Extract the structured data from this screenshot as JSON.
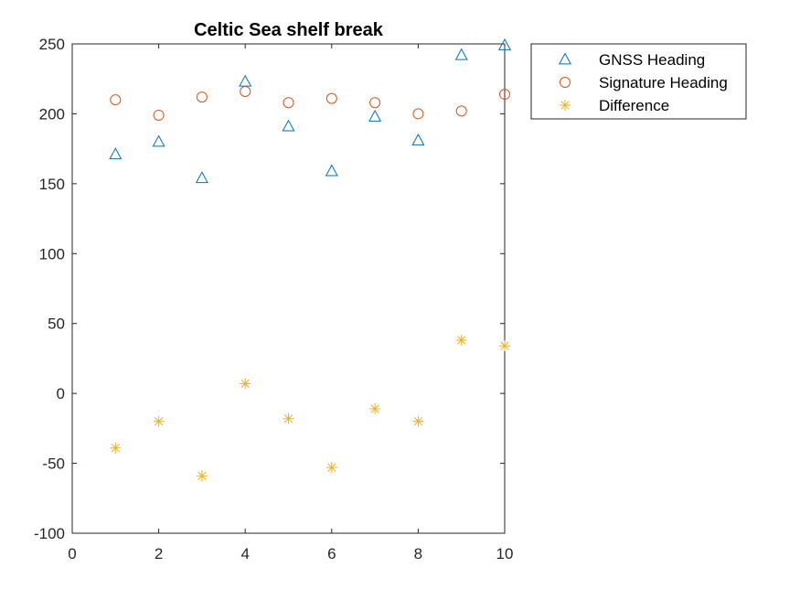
{
  "chart_data": {
    "type": "scatter",
    "title": "Celtic Sea shelf break",
    "xlabel": "",
    "ylabel": "",
    "xlim": [
      0,
      10
    ],
    "ylim": [
      -100,
      250
    ],
    "x_ticks": [
      0,
      2,
      4,
      6,
      8,
      10
    ],
    "y_ticks": [
      -100,
      -50,
      0,
      50,
      100,
      150,
      200,
      250
    ],
    "grid": false,
    "legend_position": "outside-right-top",
    "x": [
      1,
      2,
      3,
      4,
      5,
      6,
      7,
      8,
      9,
      10
    ],
    "series": [
      {
        "name": "GNSS Heading",
        "marker": "triangle",
        "color": "#0072BD",
        "values": [
          171,
          180,
          154,
          223,
          191,
          159,
          198,
          181,
          242,
          249
        ]
      },
      {
        "name": "Signature Heading",
        "marker": "circle",
        "color": "#D95319",
        "values": [
          210,
          199,
          212,
          216,
          208,
          211,
          208,
          200,
          202,
          214
        ]
      },
      {
        "name": "Difference",
        "marker": "asterisk",
        "color": "#EDB120",
        "values": [
          -39,
          -20,
          -59,
          7,
          -18,
          -53,
          -11,
          -20,
          38,
          34
        ]
      }
    ]
  }
}
